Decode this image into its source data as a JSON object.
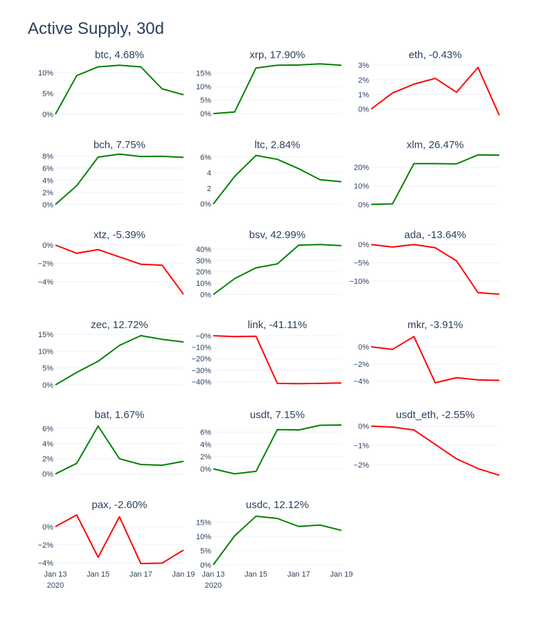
{
  "page": {
    "title": "Active Supply, 30d"
  },
  "colors": {
    "up": "#008000",
    "down": "#ff0000",
    "grid": "#ebf0f8",
    "text": "#2a3f5f"
  },
  "x_axis": {
    "tick_labels": [
      "Jan 13",
      "Jan 15",
      "Jan 17",
      "Jan 19"
    ],
    "tick_values": [
      "2020-01-13",
      "2020-01-15",
      "2020-01-17",
      "2020-01-19"
    ],
    "year_label": "2020"
  },
  "chart_data": [
    {
      "type": "line",
      "title": "btc, 4.68%",
      "color": "#008000",
      "x": [
        "2020-01-13",
        "2020-01-14",
        "2020-01-15",
        "2020-01-16",
        "2020-01-17",
        "2020-01-18",
        "2020-01-19"
      ],
      "y": [
        0,
        9.3,
        11.4,
        11.8,
        11.4,
        6.1,
        4.68
      ],
      "ylim": [
        -0.5,
        12.5
      ],
      "yticks": [
        0,
        5,
        10
      ],
      "ytick_labels": [
        "0%",
        "5%",
        "10%"
      ]
    },
    {
      "type": "line",
      "title": "xrp, 17.90%",
      "color": "#008000",
      "x": [
        "2020-01-13",
        "2020-01-14",
        "2020-01-15",
        "2020-01-16",
        "2020-01-17",
        "2020-01-18",
        "2020-01-19"
      ],
      "y": [
        0,
        0.6,
        16.9,
        17.9,
        18.0,
        18.4,
        17.9
      ],
      "ylim": [
        -1,
        19
      ],
      "yticks": [
        0,
        5,
        10,
        15
      ],
      "ytick_labels": [
        "0%",
        "5%",
        "10%",
        "15%"
      ]
    },
    {
      "type": "line",
      "title": "eth, -0.43%",
      "color": "#ff0000",
      "x": [
        "2020-01-13",
        "2020-01-14",
        "2020-01-15",
        "2020-01-16",
        "2020-01-17",
        "2020-01-18",
        "2020-01-19"
      ],
      "y": [
        0,
        1.1,
        1.7,
        2.1,
        1.15,
        2.85,
        -0.43
      ],
      "ylim": [
        -0.5,
        3.2
      ],
      "yticks": [
        0,
        1,
        2,
        3
      ],
      "ytick_labels": [
        "0%",
        "1%",
        "2%",
        "3%"
      ]
    },
    {
      "type": "line",
      "title": "bch, 7.75%",
      "color": "#008000",
      "x": [
        "2020-01-13",
        "2020-01-14",
        "2020-01-15",
        "2020-01-16",
        "2020-01-17",
        "2020-01-18",
        "2020-01-19"
      ],
      "y": [
        0,
        3.1,
        7.8,
        8.3,
        7.9,
        7.95,
        7.75
      ],
      "ylim": [
        -0.3,
        8.6
      ],
      "yticks": [
        0,
        2,
        4,
        6,
        8
      ],
      "ytick_labels": [
        "0%",
        "2%",
        "4%",
        "6%",
        "8%"
      ]
    },
    {
      "type": "line",
      "title": "ltc, 2.84%",
      "color": "#008000",
      "x": [
        "2020-01-13",
        "2020-01-14",
        "2020-01-15",
        "2020-01-16",
        "2020-01-17",
        "2020-01-18",
        "2020-01-19"
      ],
      "y": [
        0,
        3.5,
        6.2,
        5.7,
        4.5,
        3.1,
        2.84
      ],
      "ylim": [
        -0.3,
        6.6
      ],
      "yticks": [
        0,
        2,
        4,
        6
      ],
      "ytick_labels": [
        "0%",
        "2",
        "4",
        "6%"
      ]
    },
    {
      "type": "line",
      "title": "xlm, 26.47%",
      "color": "#008000",
      "x": [
        "2020-01-13",
        "2020-01-14",
        "2020-01-15",
        "2020-01-16",
        "2020-01-17",
        "2020-01-18",
        "2020-01-19"
      ],
      "y": [
        0,
        0.3,
        21.9,
        21.9,
        21.8,
        26.6,
        26.47
      ],
      "ylim": [
        -1,
        28
      ],
      "yticks": [
        0,
        10,
        20
      ],
      "ytick_labels": [
        "0%",
        "10%",
        "20%"
      ]
    },
    {
      "type": "line",
      "title": "xtz, -5.39%",
      "color": "#ff0000",
      "x": [
        "2020-01-13",
        "2020-01-14",
        "2020-01-15",
        "2020-01-16",
        "2020-01-17",
        "2020-01-18",
        "2020-01-19"
      ],
      "y": [
        0,
        -0.9,
        -0.5,
        -1.3,
        -2.1,
        -2.2,
        -5.39
      ],
      "ylim": [
        -5.6,
        0.3
      ],
      "yticks": [
        0,
        -2,
        -4
      ],
      "ytick_labels": [
        "0%",
        "−2%",
        "−4%"
      ]
    },
    {
      "type": "line",
      "title": "bsv, 42.99%",
      "color": "#008000",
      "x": [
        "2020-01-13",
        "2020-01-14",
        "2020-01-15",
        "2020-01-16",
        "2020-01-17",
        "2020-01-18",
        "2020-01-19"
      ],
      "y": [
        0,
        14,
        23.5,
        27,
        43.5,
        44,
        42.99
      ],
      "ylim": [
        -1.5,
        46
      ],
      "yticks": [
        0,
        10,
        20,
        30,
        40
      ],
      "ytick_labels": [
        "0%",
        "10%",
        "20%",
        "30%",
        "40%"
      ]
    },
    {
      "type": "line",
      "title": "ada, -13.64%",
      "color": "#ff0000",
      "x": [
        "2020-01-13",
        "2020-01-14",
        "2020-01-15",
        "2020-01-16",
        "2020-01-17",
        "2020-01-18",
        "2020-01-19"
      ],
      "y": [
        0,
        -0.7,
        0,
        -0.9,
        -4.5,
        -13.2,
        -13.64
      ],
      "ylim": [
        -14.2,
        0.6
      ],
      "yticks": [
        0,
        -5,
        -10
      ],
      "ytick_labels": [
        "0%",
        "−5%",
        "−10%"
      ]
    },
    {
      "type": "line",
      "title": "zec, 12.72%",
      "color": "#008000",
      "x": [
        "2020-01-13",
        "2020-01-14",
        "2020-01-15",
        "2020-01-16",
        "2020-01-17",
        "2020-01-18",
        "2020-01-19"
      ],
      "y": [
        0,
        3.7,
        7.0,
        11.7,
        14.6,
        13.5,
        12.72
      ],
      "ylim": [
        -0.4,
        15.6
      ],
      "yticks": [
        0,
        5,
        10,
        15
      ],
      "ytick_labels": [
        "0%",
        "5%",
        "10%",
        "15%"
      ]
    },
    {
      "type": "line",
      "title": "link, -41.11%",
      "color": "#ff0000",
      "x": [
        "2020-01-13",
        "2020-01-14",
        "2020-01-15",
        "2020-01-16",
        "2020-01-17",
        "2020-01-18",
        "2020-01-19"
      ],
      "y": [
        0,
        -0.8,
        -0.5,
        -41.5,
        -41.8,
        -41.5,
        -41.11
      ],
      "ylim": [
        -44,
        3
      ],
      "yticks": [
        0,
        -10,
        -20,
        -30,
        -40
      ],
      "ytick_labels": [
        "−0%",
        "−10%",
        "−20%",
        "−30%",
        "−40%"
      ]
    },
    {
      "type": "line",
      "title": "mkr, -3.91%",
      "color": "#ff0000",
      "x": [
        "2020-01-13",
        "2020-01-14",
        "2020-01-15",
        "2020-01-16",
        "2020-01-17",
        "2020-01-18",
        "2020-01-19"
      ],
      "y": [
        0,
        -0.3,
        1.2,
        -4.2,
        -3.6,
        -3.85,
        -3.91
      ],
      "ylim": [
        -4.6,
        1.7
      ],
      "yticks": [
        0,
        -2,
        -4
      ],
      "ytick_labels": [
        "0%",
        "−2%",
        "−4%"
      ]
    },
    {
      "type": "line",
      "title": "bat, 1.67%",
      "color": "#008000",
      "x": [
        "2020-01-13",
        "2020-01-14",
        "2020-01-15",
        "2020-01-16",
        "2020-01-17",
        "2020-01-18",
        "2020-01-19"
      ],
      "y": [
        0,
        1.4,
        6.3,
        2.0,
        1.25,
        1.15,
        1.67
      ],
      "ylim": [
        -0.3,
        6.8
      ],
      "yticks": [
        0,
        2,
        4,
        6
      ],
      "ytick_labels": [
        "0%",
        "2%",
        "4%",
        "6%"
      ]
    },
    {
      "type": "line",
      "title": "usdt, 7.15%",
      "color": "#008000",
      "x": [
        "2020-01-13",
        "2020-01-14",
        "2020-01-15",
        "2020-01-16",
        "2020-01-17",
        "2020-01-18",
        "2020-01-19"
      ],
      "y": [
        0,
        -0.8,
        -0.4,
        6.4,
        6.35,
        7.1,
        7.15
      ],
      "ylim": [
        -1.2,
        7.6
      ],
      "yticks": [
        0,
        2,
        4,
        6
      ],
      "ytick_labels": [
        "0%",
        "2%",
        "4%",
        "6%"
      ]
    },
    {
      "type": "line",
      "title": "usdt_eth, -2.55%",
      "color": "#ff0000",
      "x": [
        "2020-01-13",
        "2020-01-14",
        "2020-01-15",
        "2020-01-16",
        "2020-01-17",
        "2020-01-18",
        "2020-01-19"
      ],
      "y": [
        0,
        -0.05,
        -0.2,
        -0.95,
        -1.7,
        -2.2,
        -2.55
      ],
      "ylim": [
        -2.6,
        0.2
      ],
      "yticks": [
        0,
        -1,
        -2
      ],
      "ytick_labels": [
        "0%",
        "−1%",
        "−2%"
      ]
    },
    {
      "type": "line",
      "title": "pax, -2.60%",
      "color": "#ff0000",
      "x": [
        "2020-01-13",
        "2020-01-14",
        "2020-01-15",
        "2020-01-16",
        "2020-01-17",
        "2020-01-18",
        "2020-01-19"
      ],
      "y": [
        0,
        1.3,
        -3.4,
        1.1,
        -4.1,
        -4.05,
        -2.6
      ],
      "ylim": [
        -4.4,
        1.6
      ],
      "yticks": [
        0,
        -2,
        -4
      ],
      "ytick_labels": [
        "0%",
        "−2%",
        "−4%"
      ]
    },
    {
      "type": "line",
      "title": "usdc, 12.12%",
      "color": "#008000",
      "x": [
        "2020-01-13",
        "2020-01-14",
        "2020-01-15",
        "2020-01-16",
        "2020-01-17",
        "2020-01-18",
        "2020-01-19"
      ],
      "y": [
        0,
        10.2,
        17.1,
        16.3,
        13.5,
        14,
        12.12
      ],
      "ylim": [
        -0.5,
        18.5
      ],
      "yticks": [
        0,
        5,
        10,
        15
      ],
      "ytick_labels": [
        "0%",
        "5%",
        "10%",
        "15%"
      ]
    }
  ]
}
